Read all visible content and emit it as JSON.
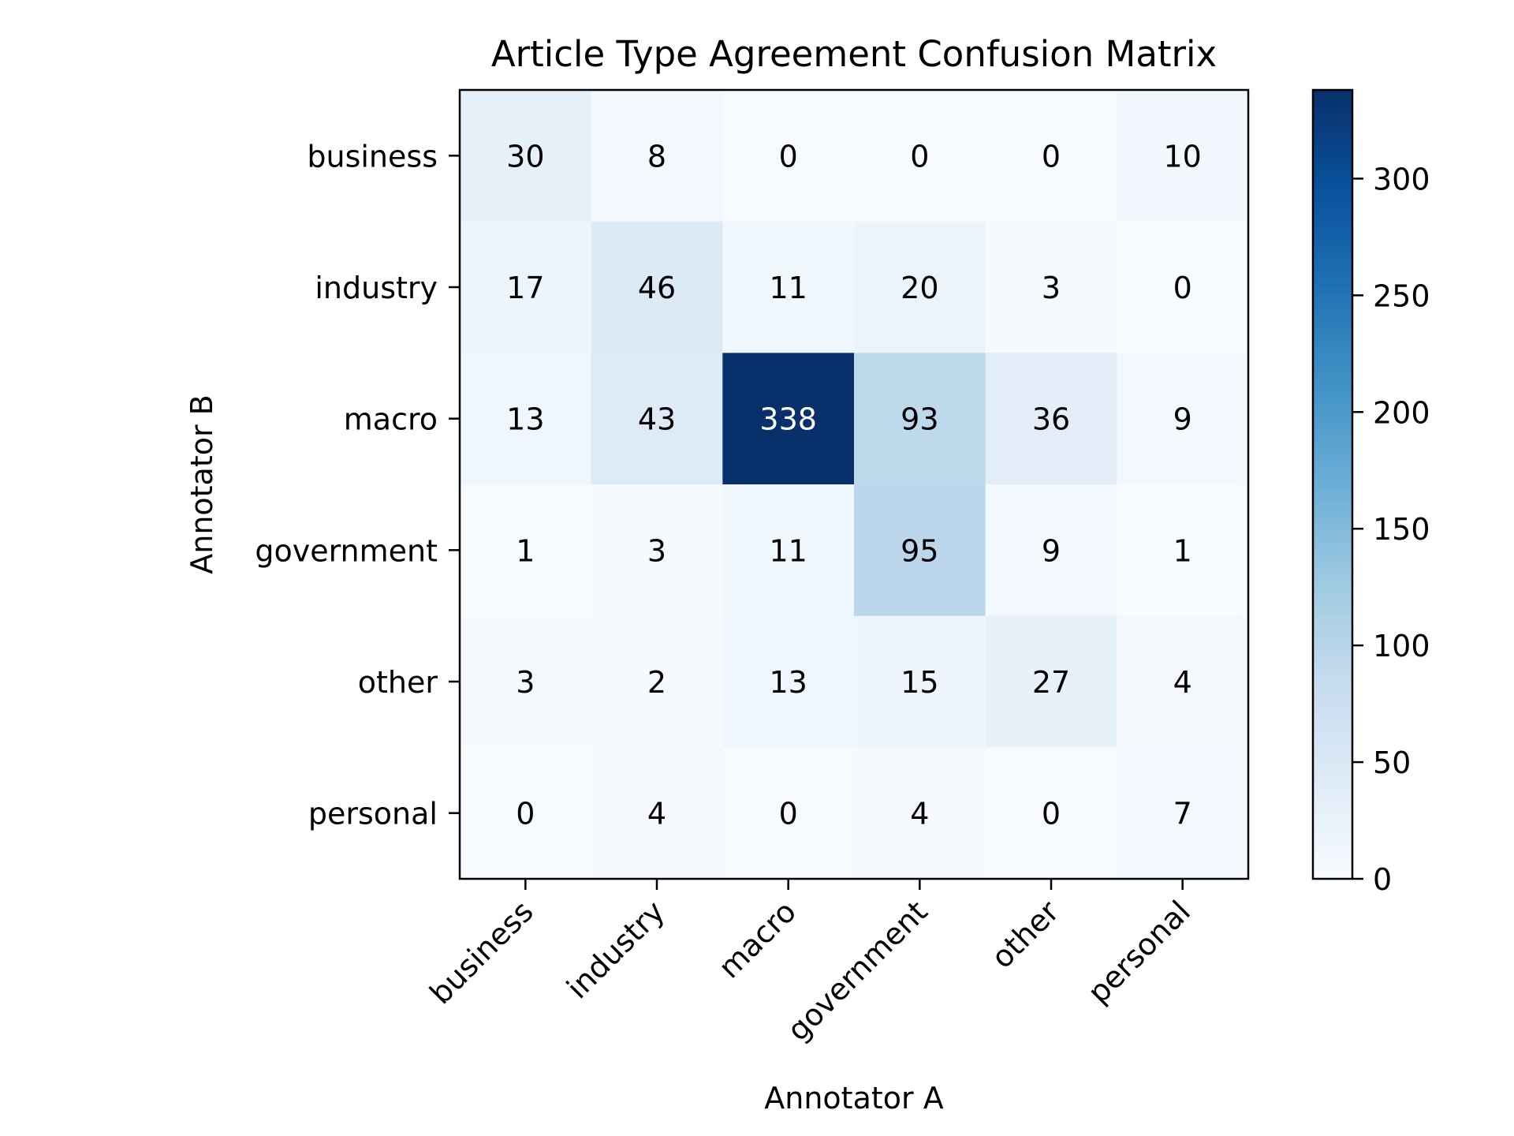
{
  "chart_data": {
    "type": "heatmap",
    "title": "Article Type Agreement Confusion Matrix",
    "xlabel": "Annotator A",
    "ylabel": "Annotator B",
    "x_categories": [
      "business",
      "industry",
      "macro",
      "government",
      "other",
      "personal"
    ],
    "y_categories": [
      "business",
      "industry",
      "macro",
      "government",
      "other",
      "personal"
    ],
    "values": [
      [
        30,
        8,
        0,
        0,
        0,
        10
      ],
      [
        17,
        46,
        11,
        20,
        3,
        0
      ],
      [
        13,
        43,
        338,
        93,
        36,
        9
      ],
      [
        1,
        3,
        11,
        95,
        9,
        1
      ],
      [
        3,
        2,
        13,
        15,
        27,
        4
      ],
      [
        0,
        4,
        0,
        4,
        0,
        7
      ]
    ],
    "colormap": "Blues",
    "colorbar": {
      "min": 0,
      "max": 338,
      "ticks": [
        "0",
        "50",
        "100",
        "150",
        "200",
        "250",
        "300"
      ]
    },
    "text_color_light": "#ffffff",
    "text_color_dark": "#000000"
  }
}
